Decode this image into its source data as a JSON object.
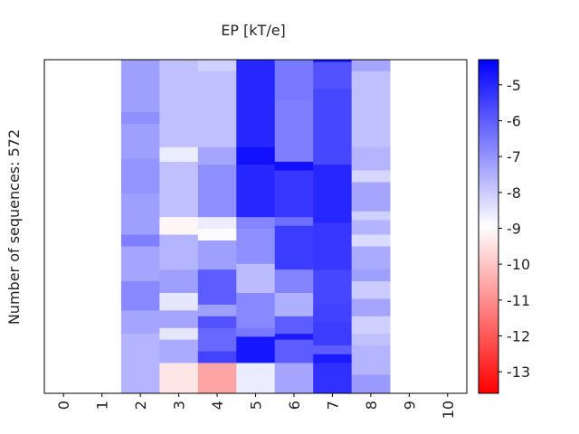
{
  "chart_data": {
    "type": "heatmap",
    "title": "EP [kT/e]",
    "ylabel": "Number of sequences: 572",
    "xlabel": "",
    "x_ticks": [
      "0",
      "1",
      "2",
      "3",
      "4",
      "5",
      "6",
      "7",
      "8",
      "9",
      "10"
    ],
    "colorbar": {
      "vmin": -13.6,
      "vmax": -4.3,
      "ticks": [
        -5,
        -6,
        -7,
        -8,
        -9,
        -10,
        -11,
        -12,
        -13
      ],
      "tick_labels": [
        "-5",
        "-6",
        "-7",
        "-8",
        "-9",
        "-10",
        "-11",
        "-12",
        "-13"
      ],
      "colors": {
        "max": "#0000ff",
        "mid": "#ffffff",
        "min": "#ff0000"
      }
    },
    "sequence_count": 572,
    "columns": [
      {
        "position": 2,
        "segments": [
          [
            0,
            90,
            -7.2
          ],
          [
            90,
            110,
            -6.9
          ],
          [
            110,
            170,
            -7.2
          ],
          [
            170,
            230,
            -7.0
          ],
          [
            230,
            300,
            -7.2
          ],
          [
            300,
            320,
            -6.6
          ],
          [
            320,
            380,
            -7.3
          ],
          [
            380,
            430,
            -6.8
          ],
          [
            430,
            470,
            -7.3
          ],
          [
            470,
            572,
            -7.6
          ]
        ]
      },
      {
        "position": 3,
        "segments": [
          [
            0,
            150,
            -7.8
          ],
          [
            150,
            175,
            -8.6
          ],
          [
            175,
            270,
            -7.8
          ],
          [
            270,
            300,
            -9.1
          ],
          [
            300,
            360,
            -7.6
          ],
          [
            360,
            400,
            -7.2
          ],
          [
            400,
            430,
            -8.5
          ],
          [
            430,
            460,
            -7.3
          ],
          [
            460,
            480,
            -8.5
          ],
          [
            480,
            520,
            -7.4
          ],
          [
            520,
            572,
            -9.4
          ]
        ]
      },
      {
        "position": 4,
        "segments": [
          [
            0,
            20,
            -8.1
          ],
          [
            20,
            150,
            -7.8
          ],
          [
            150,
            180,
            -7.3
          ],
          [
            180,
            270,
            -6.9
          ],
          [
            270,
            290,
            -8.6
          ],
          [
            290,
            310,
            -8.9
          ],
          [
            310,
            360,
            -7.2
          ],
          [
            360,
            420,
            -6.0
          ],
          [
            420,
            440,
            -7.2
          ],
          [
            440,
            460,
            -5.8
          ],
          [
            460,
            500,
            -6.2
          ],
          [
            500,
            520,
            -5.5
          ],
          [
            520,
            572,
            -10.6
          ]
        ]
      },
      {
        "position": 5,
        "segments": [
          [
            0,
            150,
            -5.0
          ],
          [
            150,
            180,
            -4.6
          ],
          [
            180,
            270,
            -5.0
          ],
          [
            270,
            290,
            -6.7
          ],
          [
            290,
            350,
            -6.9
          ],
          [
            350,
            400,
            -7.7
          ],
          [
            400,
            460,
            -6.8
          ],
          [
            460,
            475,
            -6.5
          ],
          [
            475,
            520,
            -4.7
          ],
          [
            520,
            572,
            -8.6
          ]
        ]
      },
      {
        "position": 6,
        "segments": [
          [
            0,
            70,
            -6.5
          ],
          [
            70,
            175,
            -6.6
          ],
          [
            175,
            190,
            -4.6
          ],
          [
            190,
            270,
            -5.3
          ],
          [
            270,
            285,
            -6.3
          ],
          [
            285,
            360,
            -5.4
          ],
          [
            360,
            400,
            -6.7
          ],
          [
            400,
            440,
            -7.5
          ],
          [
            440,
            470,
            -6.0
          ],
          [
            470,
            480,
            -4.8
          ],
          [
            480,
            520,
            -6.0
          ],
          [
            520,
            572,
            -7.3
          ]
        ]
      },
      {
        "position": 7,
        "segments": [
          [
            0,
            4,
            -4.6
          ],
          [
            4,
            50,
            -5.8
          ],
          [
            50,
            180,
            -5.6
          ],
          [
            180,
            280,
            -5.0
          ],
          [
            280,
            360,
            -5.3
          ],
          [
            360,
            420,
            -5.6
          ],
          [
            420,
            450,
            -5.5
          ],
          [
            450,
            490,
            -5.4
          ],
          [
            490,
            505,
            -6.0
          ],
          [
            505,
            520,
            -4.8
          ],
          [
            520,
            572,
            -5.2
          ]
        ]
      },
      {
        "position": 8,
        "segments": [
          [
            0,
            20,
            -7.3
          ],
          [
            20,
            150,
            -7.8
          ],
          [
            150,
            190,
            -7.6
          ],
          [
            190,
            210,
            -8.2
          ],
          [
            210,
            260,
            -7.3
          ],
          [
            260,
            275,
            -8.1
          ],
          [
            275,
            300,
            -7.6
          ],
          [
            300,
            320,
            -8.3
          ],
          [
            320,
            360,
            -7.4
          ],
          [
            360,
            380,
            -7.2
          ],
          [
            380,
            410,
            -8.0
          ],
          [
            410,
            440,
            -7.3
          ],
          [
            440,
            470,
            -8.1
          ],
          [
            470,
            490,
            -7.8
          ],
          [
            490,
            540,
            -7.6
          ],
          [
            540,
            572,
            -7.1
          ]
        ]
      }
    ]
  }
}
